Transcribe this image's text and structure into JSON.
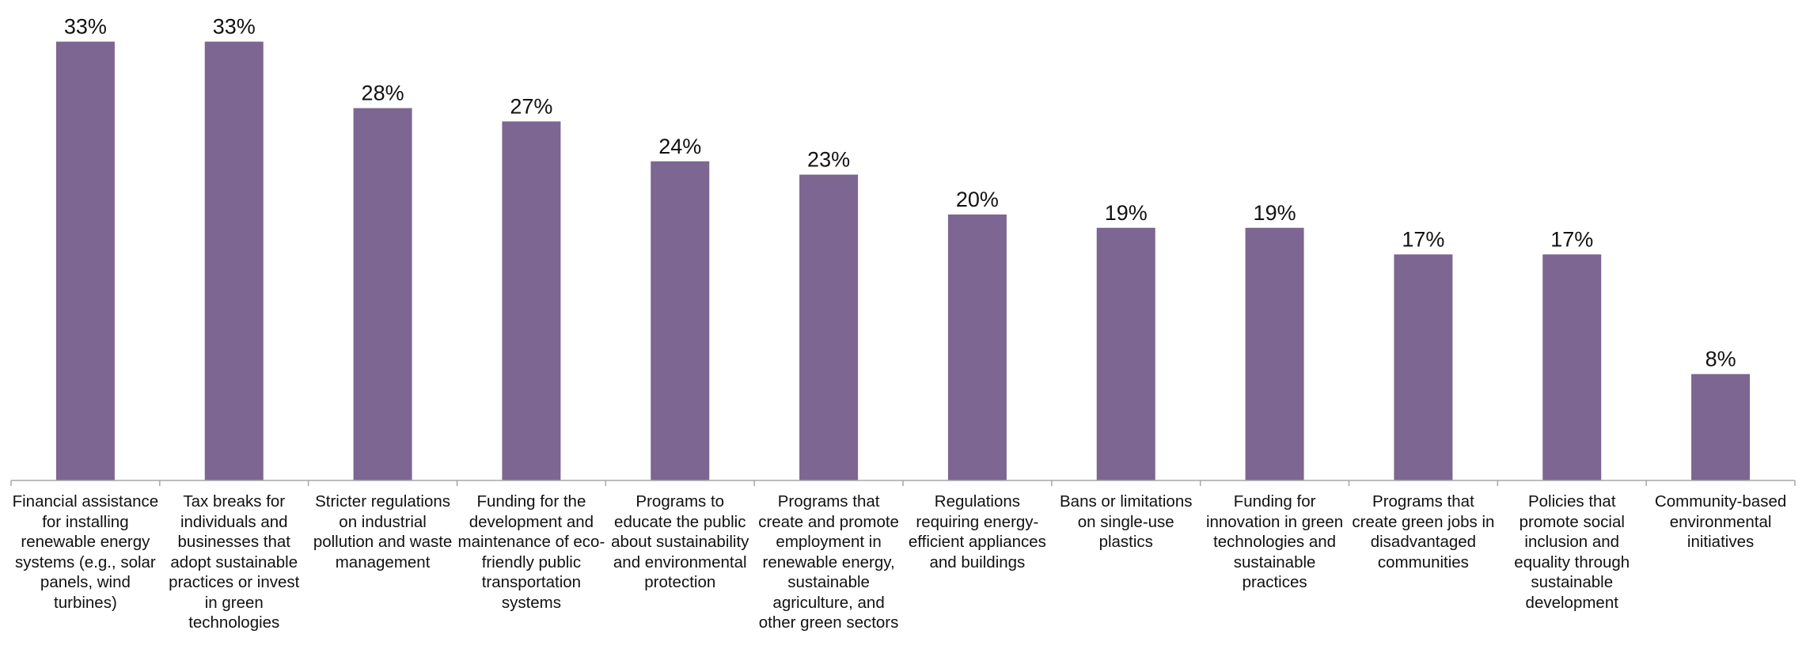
{
  "chart_data": {
    "type": "bar",
    "categories": [
      "Financial assistance for installing renewable energy systems (e.g., solar panels, wind turbines)",
      "Tax breaks for individuals and businesses that adopt sustainable practices or invest in green technologies",
      "Stricter regulations on industrial pollution and waste management",
      "Funding for the development and maintenance of eco-friendly public transportation systems",
      "Programs to educate the public about sustainability and environmental protection",
      "Programs that create and promote employment in renewable energy, sustainable agriculture, and other green sectors",
      "Regulations requiring energy-efficient appliances and buildings",
      "Bans or limitations on single-use plastics",
      "Funding for innovation in green technologies and sustainable practices",
      "Programs that create green jobs in disadvantaged communities",
      "Policies that promote social inclusion and equality through sustainable development",
      "Community-based environmental initiatives"
    ],
    "values": [
      33,
      33,
      28,
      27,
      24,
      23,
      20,
      19,
      19,
      17,
      17,
      8
    ],
    "data_labels": [
      "33%",
      "33%",
      "28%",
      "27%",
      "24%",
      "23%",
      "20%",
      "19%",
      "19%",
      "17%",
      "17%",
      "8%"
    ],
    "bar_color": "#7d6691",
    "ylim": [
      0,
      35
    ],
    "grid": false,
    "legend": "none",
    "title": "",
    "xlabel": "",
    "ylabel": ""
  }
}
